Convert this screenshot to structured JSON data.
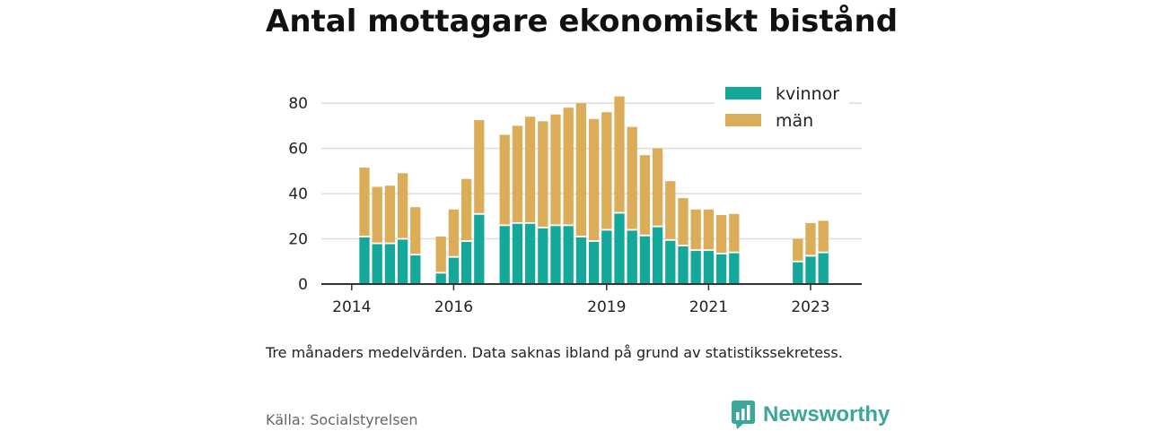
{
  "header": {
    "title": "Antal mottagare ekonomiskt bistånd"
  },
  "footer": {
    "note": "Tre månaders medelvärden. Data saknas ibland på grund av statistikssekretess.",
    "source": "Källa: Socialstyrelsen",
    "brand": "Newsworthy"
  },
  "colors": {
    "kvinnor": "#14a89a",
    "man": "#dcad59",
    "brand": "#3aa79a",
    "axis": "#333333",
    "grid": "#dddddd"
  },
  "chart_data": {
    "type": "bar",
    "stacked": true,
    "x_unit": "quarter",
    "x": [
      "2014-Q1",
      "2014-Q2",
      "2014-Q3",
      "2014-Q4",
      "2015-Q1",
      "2015-Q2",
      "2015-Q3",
      "2015-Q4",
      "2016-Q1",
      "2016-Q2",
      "2016-Q3",
      "2016-Q4",
      "2017-Q1",
      "2017-Q2",
      "2017-Q3",
      "2017-Q4",
      "2018-Q1",
      "2018-Q2",
      "2018-Q3",
      "2018-Q4",
      "2019-Q1",
      "2019-Q2",
      "2019-Q3",
      "2019-Q4",
      "2020-Q1",
      "2020-Q2",
      "2020-Q3",
      "2020-Q4",
      "2021-Q1",
      "2021-Q2",
      "2021-Q3",
      "2021-Q4",
      "2022-Q1",
      "2022-Q2",
      "2022-Q3",
      "2022-Q4",
      "2023-Q1",
      "2023-Q2",
      "2023-Q3",
      "2023-Q4"
    ],
    "series": [
      {
        "name": "kvinnor",
        "values": [
          null,
          21,
          18,
          18,
          20,
          13,
          null,
          5,
          12,
          19,
          31,
          null,
          26,
          27,
          27,
          25,
          26,
          26,
          21,
          19,
          24,
          31.5,
          24,
          21.5,
          25.5,
          19.5,
          17,
          15,
          15,
          13.5,
          14,
          null,
          null,
          null,
          null,
          10,
          12.5,
          14,
          null,
          null
        ]
      },
      {
        "name": "män",
        "values": [
          null,
          30.5,
          25,
          25.5,
          29,
          21,
          null,
          16,
          21,
          27.5,
          41.5,
          null,
          40,
          43,
          47,
          47,
          49,
          52,
          59,
          54,
          52,
          51.5,
          45.5,
          35.5,
          34.5,
          26,
          21,
          18,
          18,
          17,
          17,
          null,
          null,
          null,
          null,
          10,
          14.5,
          14,
          null,
          null
        ]
      }
    ],
    "x_ticks": [
      "2014",
      "2016",
      "2019",
      "2021",
      "2023"
    ],
    "y_ticks": [
      0,
      20,
      40,
      60,
      80
    ],
    "ylim": [
      0,
      86
    ],
    "grid": true,
    "legend_position": "top-right"
  }
}
